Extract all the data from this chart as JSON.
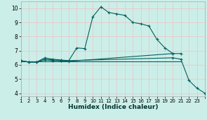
{
  "title": "",
  "xlabel": "Humidex (Indice chaleur)",
  "background_color": "#cceee8",
  "grid_color": "#e8c8c8",
  "line_color": "#006060",
  "ylim": [
    3.8,
    10.5
  ],
  "xlim": [
    0,
    23
  ],
  "yticks": [
    4,
    5,
    6,
    7,
    8,
    9,
    10
  ],
  "series1_x": [
    0,
    1,
    2,
    3,
    4,
    5,
    6,
    7,
    8,
    9,
    10,
    11,
    12,
    13,
    14,
    15,
    16,
    17,
    18,
    19
  ],
  "series1_y": [
    6.3,
    6.2,
    6.2,
    6.5,
    6.4,
    6.35,
    6.3,
    7.2,
    7.15,
    9.4,
    10.1,
    9.7,
    9.6,
    9.5,
    9.0,
    8.9,
    8.75,
    7.8,
    7.2,
    6.8
  ],
  "series2_x": [
    0,
    1,
    2,
    3,
    4,
    5,
    6,
    19,
    20,
    21,
    22,
    23
  ],
  "series2_y": [
    6.3,
    6.2,
    6.2,
    6.4,
    6.35,
    6.3,
    6.3,
    6.5,
    6.4,
    4.9,
    4.35,
    4.0
  ],
  "series3_x": [
    0,
    1,
    2,
    3,
    4,
    5,
    6,
    19,
    20
  ],
  "series3_y": [
    6.3,
    6.2,
    6.2,
    6.35,
    6.3,
    6.3,
    6.25,
    6.8,
    6.8
  ],
  "series4_x": [
    0,
    20
  ],
  "series4_y": [
    6.25,
    6.25
  ]
}
